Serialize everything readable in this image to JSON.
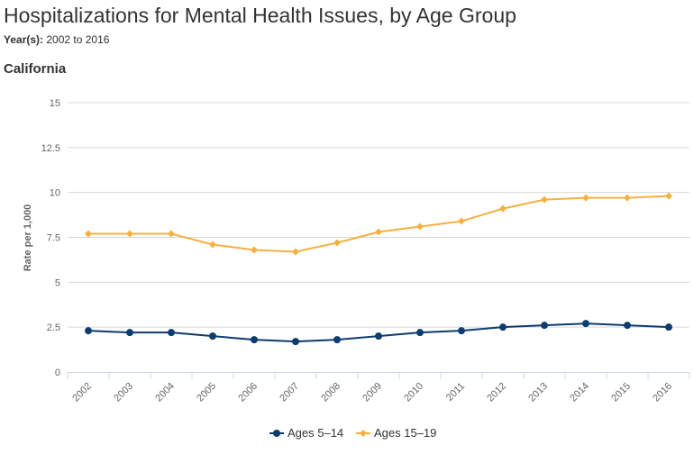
{
  "header": {
    "title": "Hospitalizations for Mental Health Issues, by Age Group",
    "years_label": "Year(s):",
    "years_value": "2002 to 2016",
    "region": "California"
  },
  "chart_data": {
    "type": "line",
    "title": "Hospitalizations for Mental Health Issues, by Age Group",
    "xlabel": "",
    "ylabel": "Rate per 1,000",
    "ylim": [
      0,
      15
    ],
    "yticks": [
      "0",
      "2.5",
      "5",
      "7.5",
      "10",
      "12.5",
      "15"
    ],
    "grid": true,
    "legend": "bottom-center",
    "x": [
      "2002",
      "2003",
      "2004",
      "2005",
      "2006",
      "2007",
      "2008",
      "2009",
      "2010",
      "2011",
      "2012",
      "2013",
      "2014",
      "2015",
      "2016"
    ],
    "series": [
      {
        "name": "Ages 5–14",
        "color": "#0d3c6e",
        "marker": "circle",
        "values": [
          2.3,
          2.2,
          2.2,
          2.0,
          1.8,
          1.7,
          1.8,
          2.0,
          2.2,
          2.3,
          2.5,
          2.6,
          2.7,
          2.6,
          2.5
        ]
      },
      {
        "name": "Ages 15–19",
        "color": "#f5b041",
        "marker": "diamond",
        "values": [
          7.7,
          7.7,
          7.7,
          7.1,
          6.8,
          6.7,
          7.2,
          7.8,
          8.1,
          8.4,
          9.1,
          9.6,
          9.7,
          9.7,
          9.8
        ]
      }
    ]
  }
}
